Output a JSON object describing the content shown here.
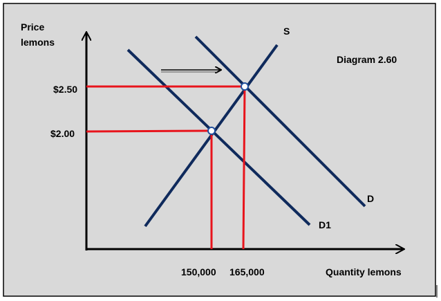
{
  "axes": {
    "y_label": [
      "Price",
      "lemons"
    ],
    "x_label": "Quantity lemons"
  },
  "curves": {
    "supply": "S",
    "demand_new": "D",
    "demand_old": "D1"
  },
  "title": "Diagram 2.60",
  "price_labels": [
    "$2.50",
    "$2.00"
  ],
  "quantity_labels": [
    "150,000",
    "165,000"
  ]
}
